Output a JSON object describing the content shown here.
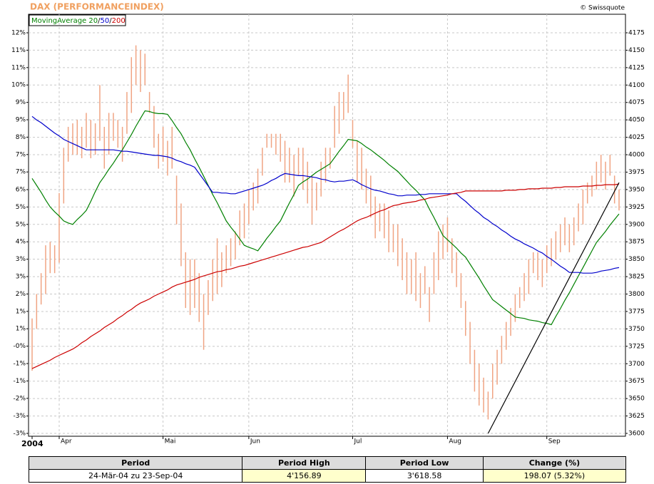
{
  "chart_data": {
    "type": "hilo",
    "title": "DAX (PERFORMANCEINDEX)",
    "source": "© Swissquote",
    "legend_label": "MovingAverage",
    "legend_separator": "/",
    "grid": true,
    "bar_color": "#f0a483",
    "categories": [
      "2004",
      null,
      null,
      null,
      null,
      null,
      "Apr",
      null,
      null,
      null,
      null,
      null,
      null,
      null,
      null,
      null,
      null,
      null,
      null,
      null,
      null,
      null,
      null,
      null,
      null,
      null,
      null,
      null,
      null,
      "Mai",
      null,
      null,
      null,
      null,
      null,
      null,
      null,
      null,
      null,
      null,
      null,
      null,
      null,
      null,
      null,
      null,
      null,
      null,
      "Jun",
      null,
      null,
      null,
      null,
      null,
      null,
      null,
      null,
      null,
      null,
      null,
      null,
      null,
      null,
      null,
      null,
      null,
      null,
      null,
      null,
      null,
      null,
      "Jul",
      null,
      null,
      null,
      null,
      null,
      null,
      null,
      null,
      null,
      null,
      null,
      null,
      null,
      null,
      null,
      null,
      null,
      null,
      null,
      null,
      "Aug",
      null,
      null,
      null,
      null,
      null,
      null,
      null,
      null,
      null,
      null,
      null,
      null,
      null,
      null,
      null,
      null,
      null,
      null,
      null,
      null,
      null,
      "Sep",
      null,
      null,
      null,
      null,
      null,
      null,
      null,
      null,
      null,
      null,
      null,
      null,
      null,
      null,
      null,
      null
    ],
    "low": [
      3690,
      3750,
      3785,
      3800,
      3830,
      3830,
      3845,
      3930,
      3990,
      4000,
      4000,
      3995,
      4010,
      3995,
      4000,
      4020,
      3980,
      4000,
      4020,
      4010,
      3990,
      4030,
      4060,
      4100,
      4090,
      4100,
      4060,
      4010,
      3980,
      3990,
      3970,
      3980,
      3900,
      3840,
      3780,
      3770,
      3780,
      3760,
      3720,
      3770,
      3790,
      3800,
      3810,
      3830,
      3840,
      3850,
      3870,
      3880,
      3900,
      3920,
      3930,
      3970,
      4010,
      4010,
      4000,
      3990,
      3960,
      3960,
      3940,
      3970,
      3950,
      3930,
      3900,
      3920,
      3940,
      3960,
      3980,
      4010,
      4030,
      4050,
      4060,
      4010,
      3960,
      3950,
      3930,
      3910,
      3880,
      3890,
      3880,
      3860,
      3860,
      3840,
      3820,
      3800,
      3800,
      3790,
      3780,
      3800,
      3760,
      3800,
      3820,
      3850,
      3860,
      3830,
      3810,
      3780,
      3740,
      3700,
      3660,
      3640,
      3630,
      3620,
      3650,
      3670,
      3700,
      3720,
      3740,
      3760,
      3780,
      3790,
      3800,
      3830,
      3820,
      3810,
      3830,
      3840,
      3850,
      3860,
      3870,
      3860,
      3870,
      3890,
      3900,
      3930,
      3940,
      3950,
      3960,
      3950,
      3970,
      3930,
      3920
    ],
    "high": [
      3765,
      3800,
      3830,
      3870,
      3875,
      3870,
      3945,
      4010,
      4040,
      4045,
      4050,
      4040,
      4060,
      4050,
      4045,
      4100,
      4040,
      4060,
      4060,
      4050,
      4040,
      4090,
      4140,
      4157,
      4150,
      4145,
      4090,
      4070,
      4030,
      4040,
      4020,
      4040,
      3970,
      3930,
      3860,
      3850,
      3850,
      3830,
      3800,
      3820,
      3850,
      3880,
      3860,
      3870,
      3880,
      3890,
      3920,
      3930,
      3950,
      3960,
      3980,
      4010,
      4030,
      4030,
      4030,
      4030,
      4020,
      4010,
      4000,
      4010,
      4010,
      3990,
      3970,
      3960,
      3990,
      4010,
      4010,
      4070,
      4090,
      4090,
      4115,
      4050,
      4020,
      4010,
      3980,
      3970,
      3940,
      3930,
      3930,
      3920,
      3900,
      3900,
      3880,
      3860,
      3850,
      3860,
      3830,
      3840,
      3810,
      3860,
      3890,
      3900,
      3910,
      3880,
      3860,
      3830,
      3790,
      3760,
      3720,
      3700,
      3680,
      3660,
      3700,
      3720,
      3740,
      3760,
      3780,
      3800,
      3810,
      3830,
      3850,
      3860,
      3860,
      3850,
      3870,
      3880,
      3890,
      3900,
      3910,
      3900,
      3910,
      3930,
      3950,
      3960,
      3970,
      3990,
      4000,
      3990,
      4000,
      3970,
      3950
    ],
    "series": [
      {
        "name": "20",
        "color": "#008000",
        "values": [
          3966,
          3956,
          3946,
          3935,
          3925,
          3918,
          3912,
          3905,
          3902,
          3900,
          3907,
          3913,
          3920,
          3933,
          3947,
          3960,
          3969,
          3979,
          3988,
          3998,
          4007,
          4018,
          4029,
          4041,
          4052,
          4063,
          4062,
          4060,
          4059,
          4059,
          4058,
          4049,
          4039,
          4030,
          4018,
          4007,
          3994,
          3982,
          3969,
          3956,
          3943,
          3931,
          3918,
          3905,
          3896,
          3888,
          3879,
          3870,
          3867,
          3865,
          3862,
          3871,
          3880,
          3888,
          3897,
          3905,
          3918,
          3931,
          3943,
          3956,
          3961,
          3965,
          3970,
          3975,
          3979,
          3983,
          3987,
          3996,
          4005,
          4013,
          4022,
          4021,
          4020,
          4016,
          4011,
          4007,
          4002,
          3997,
          3992,
          3986,
          3981,
          3976,
          3969,
          3962,
          3955,
          3949,
          3942,
          3935,
          3922,
          3910,
          3897,
          3884,
          3878,
          3872,
          3866,
          3859,
          3853,
          3843,
          3833,
          3823,
          3812,
          3802,
          3792,
          3787,
          3782,
          3777,
          3772,
          3767,
          3766,
          3765,
          3763,
          3762,
          3761,
          3759,
          3758,
          3756,
          3768,
          3779,
          3791,
          3802,
          3814,
          3826,
          3838,
          3850,
          3862,
          3874,
          3882,
          3890,
          3899,
          3907,
          3915
        ]
      },
      {
        "name": "50",
        "color": "#0000cc",
        "values": [
          4055,
          4050,
          4046,
          4041,
          4036,
          4031,
          4027,
          4022,
          4019,
          4016,
          4013,
          4010,
          4007,
          4007,
          4007,
          4007,
          4007,
          4007,
          4007,
          4006,
          4005,
          4005,
          4004,
          4003,
          4002,
          4001,
          4000,
          3999,
          3999,
          3998,
          3997,
          3995,
          3992,
          3990,
          3987,
          3985,
          3982,
          3973,
          3964,
          3955,
          3946,
          3946,
          3945,
          3945,
          3944,
          3944,
          3946,
          3948,
          3950,
          3952,
          3954,
          3956,
          3959,
          3963,
          3966,
          3970,
          3973,
          3972,
          3971,
          3970,
          3970,
          3969,
          3968,
          3967,
          3965,
          3964,
          3962,
          3961,
          3962,
          3962,
          3963,
          3964,
          3961,
          3957,
          3954,
          3951,
          3949,
          3948,
          3946,
          3944,
          3943,
          3941,
          3941,
          3942,
          3942,
          3942,
          3943,
          3943,
          3944,
          3944,
          3944,
          3944,
          3944,
          3944,
          3944,
          3938,
          3933,
          3927,
          3921,
          3916,
          3910,
          3906,
          3901,
          3897,
          3892,
          3888,
          3883,
          3879,
          3876,
          3872,
          3869,
          3866,
          3862,
          3859,
          3854,
          3850,
          3845,
          3840,
          3836,
          3831,
          3831,
          3831,
          3830,
          3830,
          3830,
          3831,
          3833,
          3834,
          3835,
          3837,
          3838
        ]
      },
      {
        "name": "200",
        "color": "#cc0000",
        "values": [
          3693,
          3696,
          3699,
          3702,
          3705,
          3709,
          3712,
          3715,
          3718,
          3721,
          3725,
          3730,
          3734,
          3739,
          3743,
          3747,
          3752,
          3756,
          3760,
          3765,
          3769,
          3774,
          3778,
          3783,
          3787,
          3790,
          3793,
          3797,
          3800,
          3803,
          3806,
          3810,
          3813,
          3815,
          3817,
          3819,
          3821,
          3824,
          3826,
          3828,
          3830,
          3832,
          3833,
          3835,
          3836,
          3838,
          3840,
          3841,
          3843,
          3845,
          3847,
          3849,
          3851,
          3853,
          3855,
          3857,
          3859,
          3861,
          3863,
          3865,
          3867,
          3868,
          3870,
          3872,
          3874,
          3878,
          3882,
          3886,
          3890,
          3893,
          3897,
          3901,
          3905,
          3908,
          3910,
          3913,
          3916,
          3919,
          3921,
          3924,
          3927,
          3928,
          3930,
          3931,
          3932,
          3933,
          3935,
          3936,
          3938,
          3939,
          3940,
          3941,
          3942,
          3944,
          3945,
          3946,
          3948,
          3948,
          3948,
          3948,
          3948,
          3948,
          3948,
          3948,
          3948,
          3949,
          3949,
          3949,
          3950,
          3950,
          3951,
          3951,
          3951,
          3952,
          3952,
          3952,
          3953,
          3953,
          3954,
          3954,
          3954,
          3954,
          3955,
          3955,
          3955,
          3956,
          3956,
          3957,
          3957,
          3957,
          3958
        ]
      }
    ],
    "trendline": {
      "x": [
        101,
        130
      ],
      "values": [
        3600,
        3960
      ],
      "color": "#000000"
    },
    "ylim": [
      3600,
      4175
    ],
    "yticks": [
      3600,
      3625,
      3650,
      3675,
      3700,
      3725,
      3750,
      3775,
      3800,
      3825,
      3850,
      3875,
      3900,
      3925,
      3950,
      3975,
      4000,
      4025,
      4050,
      4075,
      4100,
      4125,
      4150,
      4175
    ],
    "y2lim": [
      -3.41,
      12.02
    ],
    "y2ticks": [
      {
        "value": 12.02,
        "label": "12%"
      },
      {
        "value": 11.35,
        "label": "11%"
      },
      {
        "value": 10.68,
        "label": "11%"
      },
      {
        "value": 10.01,
        "label": "10%"
      },
      {
        "value": 9.34,
        "label": "9%"
      },
      {
        "value": 8.67,
        "label": "9%"
      },
      {
        "value": 8.0,
        "label": "8%"
      },
      {
        "value": 7.33,
        "label": "7%"
      },
      {
        "value": 6.66,
        "label": "7%"
      },
      {
        "value": 5.98,
        "label": "6%"
      },
      {
        "value": 5.31,
        "label": "5%"
      },
      {
        "value": 4.64,
        "label": "5%"
      },
      {
        "value": 3.97,
        "label": "4%"
      },
      {
        "value": 3.3,
        "label": "3%"
      },
      {
        "value": 2.63,
        "label": "3%"
      },
      {
        "value": 1.96,
        "label": "2%"
      },
      {
        "value": 1.29,
        "label": "1%"
      },
      {
        "value": 0.62,
        "label": "1%"
      },
      {
        "value": -0.05,
        "label": "-0%"
      },
      {
        "value": -0.72,
        "label": "-1%"
      },
      {
        "value": -1.39,
        "label": "-1%"
      },
      {
        "value": -2.06,
        "label": "-2%"
      },
      {
        "value": -2.74,
        "label": "-3%"
      },
      {
        "value": -3.41,
        "label": "-3%"
      }
    ]
  },
  "table": {
    "header": [
      "Period",
      "Period High",
      "Period Low",
      "Change (%)"
    ],
    "rows": [
      [
        "24-Mär-04 zu 23-Sep-04",
        "4'156.89",
        "3'618.58",
        "198.07 (5.32%)"
      ]
    ]
  }
}
